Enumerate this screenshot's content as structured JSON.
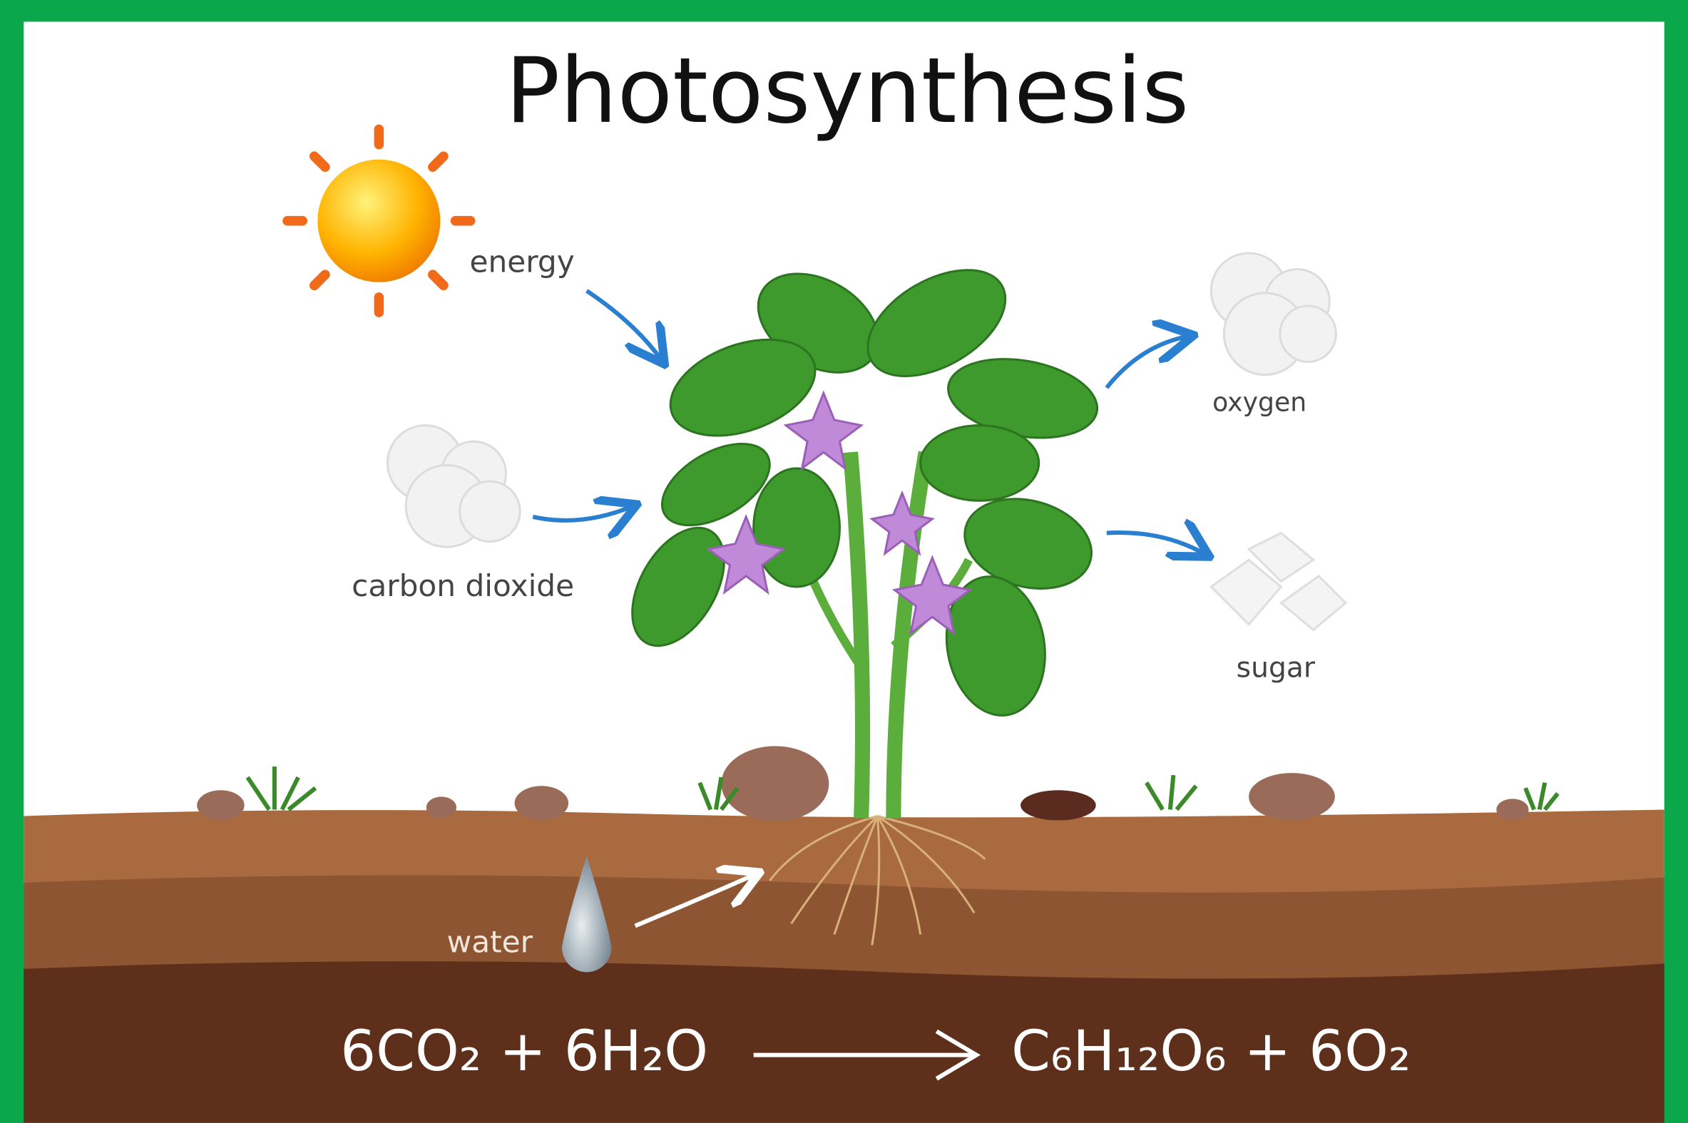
{
  "title": "Photosynthesis",
  "labels": {
    "energy": "energy",
    "carbon_dioxide": "carbon dioxide",
    "oxygen": "oxygen",
    "sugar": "sugar",
    "water": "water"
  },
  "equation": {
    "reactants": "6CO₂ + 6H₂O",
    "products": "C₆H₁₂O₆ + 6O₂"
  }
}
